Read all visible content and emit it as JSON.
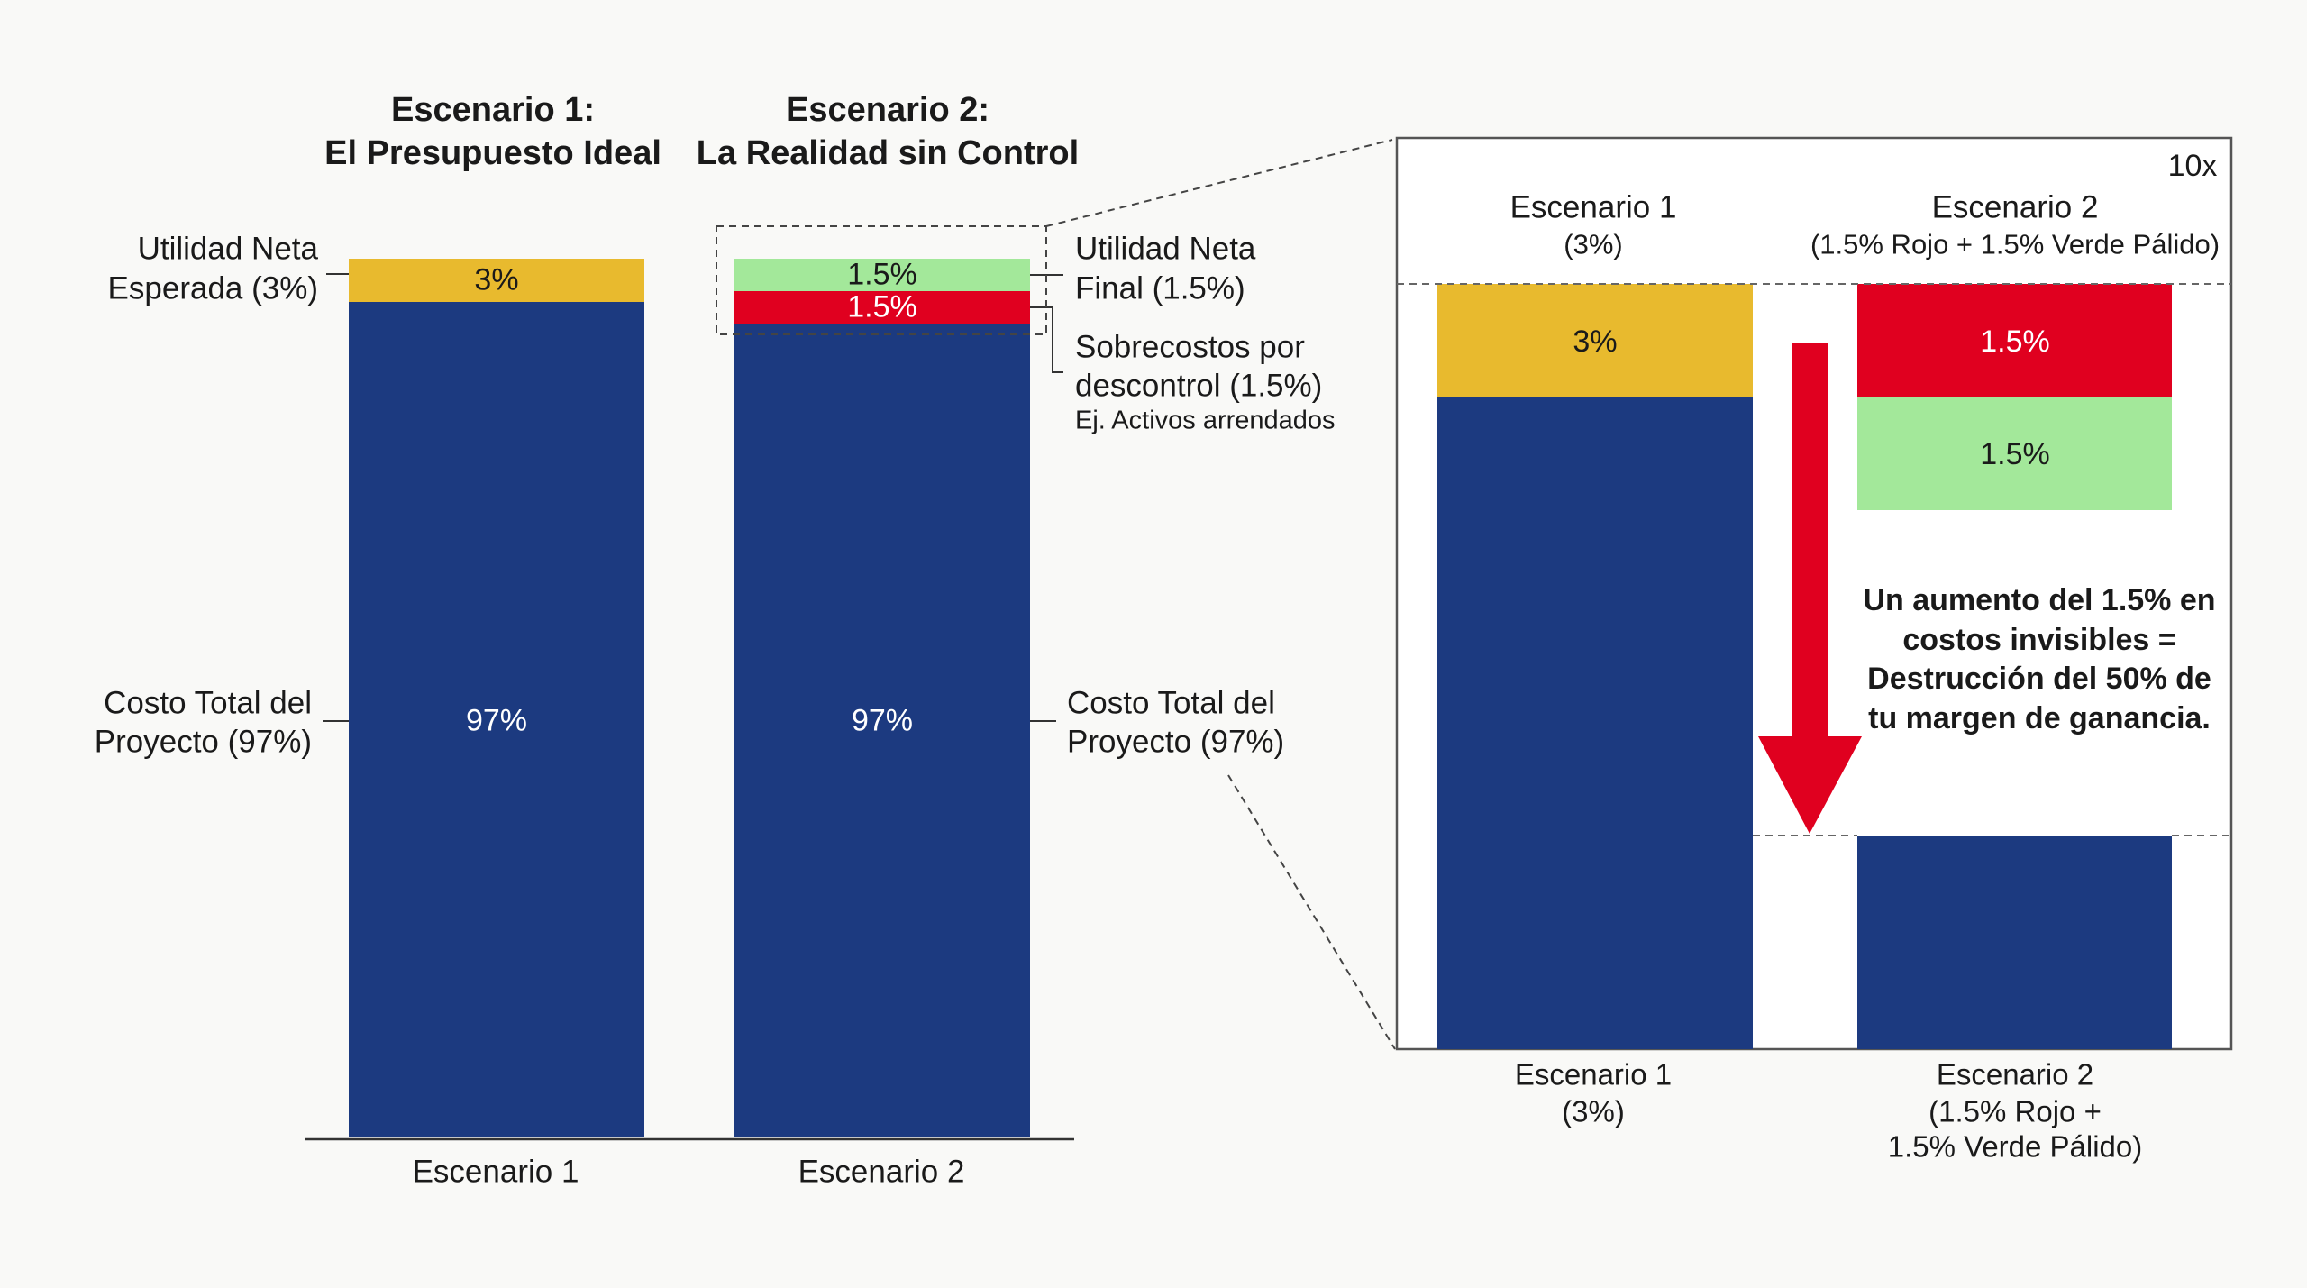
{
  "colors": {
    "cost": "#1c3a80",
    "expected_profit": "#e8ba2e",
    "overrun": "#e0001f",
    "final_profit": "#a3e89a",
    "background": "#f9f9f7"
  },
  "titles": {
    "s1_line1": "Escenario 1:",
    "s1_line2": "El Presupuesto Ideal",
    "s2_line1": "Escenario 2:",
    "s2_line2": "La Realidad sin Control"
  },
  "annotations": {
    "left_profit_1": "Utilidad Neta",
    "left_profit_2": "Esperada (3%)",
    "left_cost_1": "Costo Total del",
    "left_cost_2": "Proyecto (97%)",
    "right_profit_1": "Utilidad Neta",
    "right_profit_2": "Final (1.5%)",
    "right_overrun_1": "Sobrecostos por",
    "right_overrun_2": "descontrol (1.5%)",
    "right_overrun_example": "Ej. Activos arrendados",
    "right_cost_1": "Costo Total del",
    "right_cost_2": "Proyecto (97%)"
  },
  "inset": {
    "zoom_label": "10x",
    "s1_header": "Escenario 1",
    "s1_sub": "(3%)",
    "s2_header": "Escenario 2",
    "s2_sub": "(1.5% Rojo + 1.5% Verde Pálido)",
    "message_1": "Un aumento del 1.5% en",
    "message_2": "costos invisibles =",
    "message_3": "Destrucción del 50% de",
    "message_4": "tu margen de ganancia.",
    "x1_line1": "Escenario 1",
    "x1_line2": "(3%)",
    "x2_line1": "Escenario 2",
    "x2_line2": "(1.5% Rojo +",
    "x2_line3": "1.5% Verde Pálido)"
  },
  "chart_data": [
    {
      "type": "bar",
      "stacked": true,
      "categories": [
        "Escenario 1",
        "Escenario 2"
      ],
      "series": [
        {
          "values": [
            97,
            97
          ],
          "labels": [
            "97%",
            "97%"
          ]
        },
        {
          "values": [
            0,
            1.5
          ],
          "labels": [
            "",
            "1.5%"
          ]
        },
        {
          "values": [
            3,
            1.5
          ],
          "labels": [
            "3%",
            "1.5%"
          ]
        }
      ],
      "ylim": [
        0,
        100
      ],
      "grid": false
    },
    {
      "type": "bar",
      "stacked": true,
      "zoom": "10x",
      "categories": [
        "Escenario 1 (3%)",
        "Escenario 2 (1.5% Rojo + 1.5% Verde Pálido)"
      ],
      "segments": {
        "s1": [
          {
            "value": 3,
            "label": "3%"
          }
        ],
        "s2": [
          {
            "value": 1.5,
            "label": "1.5%"
          },
          {
            "value": 1.5,
            "label": "1.5%"
          }
        ]
      }
    }
  ]
}
